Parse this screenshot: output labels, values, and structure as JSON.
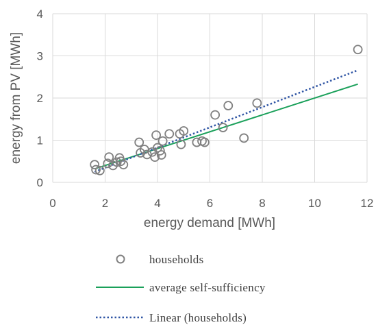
{
  "chart_data": {
    "type": "scatter",
    "xlabel": "energy demand [MWh]",
    "ylabel": "energy from PV [MWh]",
    "xlim": [
      0,
      12
    ],
    "ylim": [
      0,
      4
    ],
    "xticks": [
      "0",
      "2",
      "4",
      "6",
      "8",
      "10",
      "12"
    ],
    "yticks": [
      "0",
      "1",
      "2",
      "3",
      "4"
    ],
    "grid": true,
    "legend_position": "bottom",
    "series": [
      {
        "name": "households",
        "kind": "markers",
        "marker": "open-circle",
        "color": "#808080",
        "points": [
          [
            1.6,
            0.42
          ],
          [
            1.65,
            0.3
          ],
          [
            1.8,
            0.28
          ],
          [
            2.1,
            0.45
          ],
          [
            2.15,
            0.6
          ],
          [
            2.3,
            0.4
          ],
          [
            2.45,
            0.48
          ],
          [
            2.55,
            0.58
          ],
          [
            2.6,
            0.5
          ],
          [
            2.7,
            0.42
          ],
          [
            3.3,
            0.95
          ],
          [
            3.35,
            0.7
          ],
          [
            3.5,
            0.78
          ],
          [
            3.6,
            0.66
          ],
          [
            3.8,
            0.72
          ],
          [
            3.9,
            0.6
          ],
          [
            3.95,
            1.12
          ],
          [
            4.0,
            0.82
          ],
          [
            4.1,
            0.75
          ],
          [
            4.15,
            0.65
          ],
          [
            4.2,
            0.98
          ],
          [
            4.45,
            1.15
          ],
          [
            4.85,
            1.15
          ],
          [
            4.9,
            0.9
          ],
          [
            5.0,
            1.22
          ],
          [
            5.5,
            0.95
          ],
          [
            5.7,
            0.98
          ],
          [
            5.8,
            0.95
          ],
          [
            6.2,
            1.6
          ],
          [
            6.5,
            1.3
          ],
          [
            6.7,
            1.82
          ],
          [
            7.3,
            1.05
          ],
          [
            7.8,
            1.88
          ],
          [
            11.65,
            3.15
          ]
        ]
      },
      {
        "name": "average self-sufficiency",
        "kind": "line",
        "color": "#1aa05a",
        "x": [
          1.6,
          11.65
        ],
        "y": [
          0.32,
          2.33
        ]
      },
      {
        "name": "Linear (households)",
        "kind": "dotted-line",
        "color": "#2f55a4",
        "x": [
          1.6,
          11.65
        ],
        "y": [
          0.25,
          2.66
        ]
      }
    ]
  },
  "legend": {
    "households": "households",
    "average": "average self-sufficiency",
    "linear": "Linear (households)"
  }
}
